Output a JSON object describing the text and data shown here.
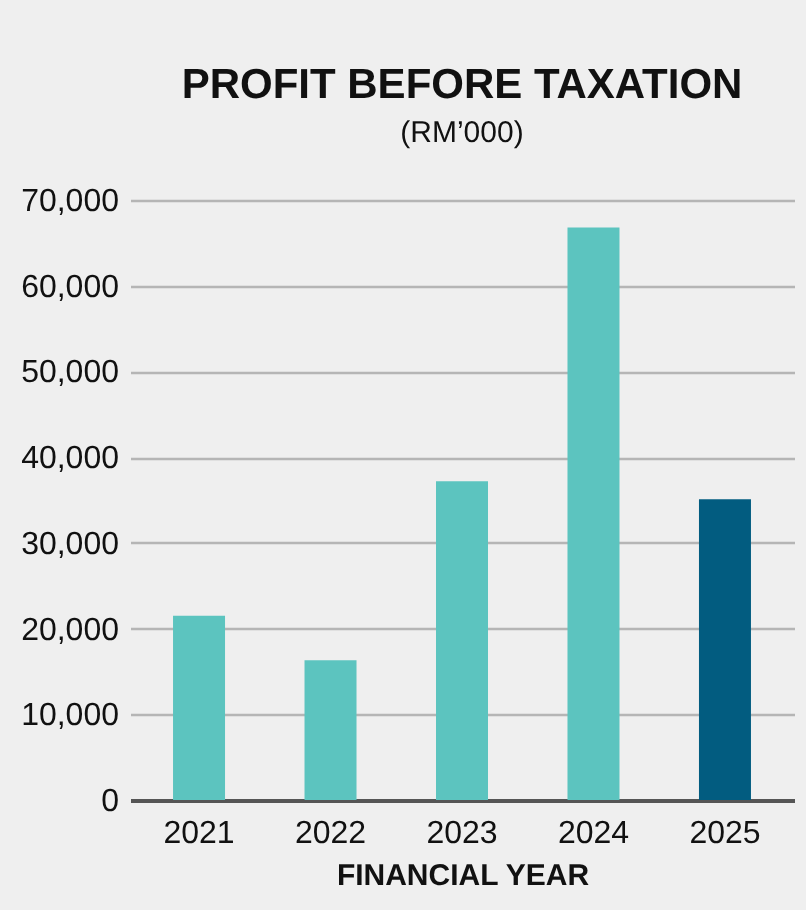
{
  "chart_data": {
    "type": "bar",
    "title": "PROFIT BEFORE TAXATION",
    "subtitle": "(RM’000)",
    "xlabel": "FINANCIAL YEAR",
    "categories": [
      "2021",
      "2022",
      "2023",
      "2024",
      "2025"
    ],
    "values": [
      21500,
      16300,
      37200,
      66800,
      35100
    ],
    "colors": [
      "#5cc4bf",
      "#5cc4bf",
      "#5cc4bf",
      "#5cc4bf",
      "#025c80"
    ],
    "ylim": [
      0,
      70000
    ],
    "yticks": [
      0,
      {
        "value": 10000,
        "label": "10,000"
      },
      {
        "value": 20000,
        "label": "20,000"
      },
      {
        "value": 30000,
        "label": "30,000"
      },
      {
        "value": 40000,
        "label": "40,000"
      },
      {
        "value": 50000,
        "label": "50,000"
      },
      {
        "value": 60000,
        "label": "60,000"
      },
      {
        "value": 70000,
        "label": "70,000"
      }
    ],
    "grid": "y"
  }
}
